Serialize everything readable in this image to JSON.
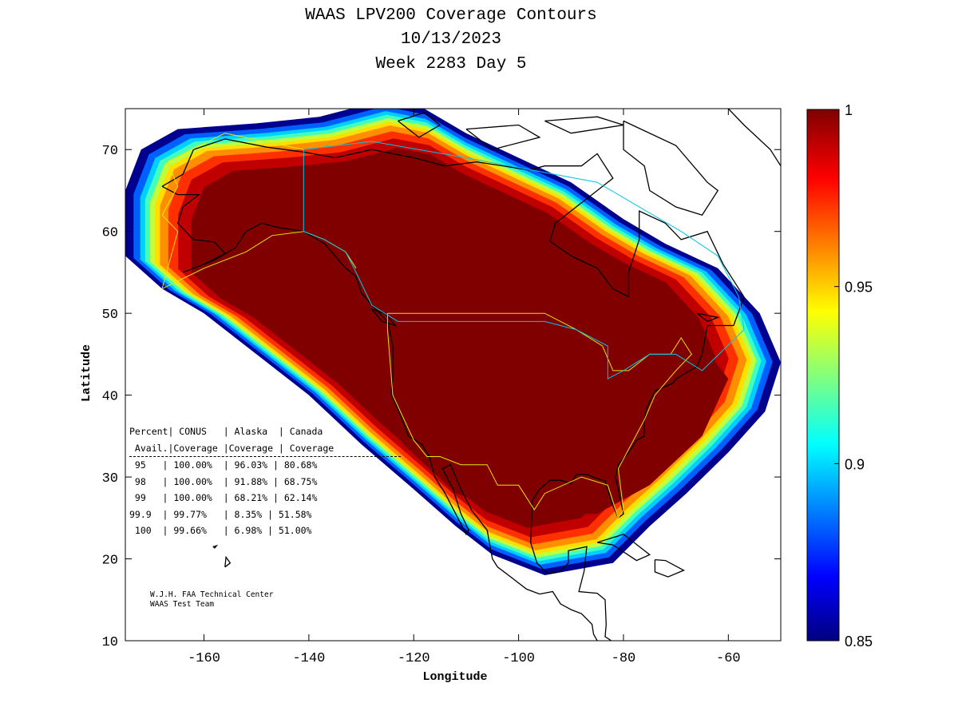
{
  "title": {
    "line1": "WAAS LPV200 Coverage Contours",
    "line2": "10/13/2023",
    "line3": "Week 2283 Day 5"
  },
  "chart_data": {
    "type": "heatmap",
    "xlabel": "Longitude",
    "ylabel": "Latitude",
    "xlim": [
      -175,
      -50
    ],
    "ylim": [
      10,
      75
    ],
    "xticks": [
      -160,
      -140,
      -120,
      -100,
      -80,
      -60
    ],
    "yticks": [
      10,
      20,
      30,
      40,
      50,
      60,
      70
    ],
    "colorbar": {
      "range": [
        0.85,
        1
      ],
      "ticks": [
        "0.85",
        "0.9",
        "0.95",
        "1"
      ],
      "colormap": "jet"
    },
    "coverage_bands": [
      {
        "level": 0.85,
        "color": "#00008f"
      },
      {
        "level": 0.88,
        "color": "#0060ff"
      },
      {
        "level": 0.9,
        "color": "#00cfff"
      },
      {
        "level": 0.92,
        "color": "#40ffbf"
      },
      {
        "level": 0.94,
        "color": "#bfff40"
      },
      {
        "level": 0.95,
        "color": "#ffdf00"
      },
      {
        "level": 0.96,
        "color": "#ff8f00"
      },
      {
        "level": 0.97,
        "color": "#ff3000"
      },
      {
        "level": 0.985,
        "color": "#c00000"
      },
      {
        "level": 1.0,
        "color": "#800000"
      }
    ],
    "table": {
      "header1": [
        "Percent",
        "CONUS",
        "Alaska",
        "Canada"
      ],
      "header2": [
        "Avail.",
        "Coverage",
        "Coverage",
        "Coverage"
      ],
      "rows": [
        [
          "95",
          "100.00%",
          "96.03%",
          "80.68%"
        ],
        [
          "98",
          "100.00%",
          "91.88%",
          "68.75%"
        ],
        [
          "99",
          "100.00%",
          "68.21%",
          "62.14%"
        ],
        [
          "99.9",
          "99.77%",
          "8.35%",
          "51.58%"
        ],
        [
          "100",
          "99.66%",
          "6.98%",
          "51.00%"
        ]
      ]
    }
  },
  "credit": {
    "line1": "W.J.H. FAA Technical Center",
    "line2": "WAAS Test Team"
  }
}
